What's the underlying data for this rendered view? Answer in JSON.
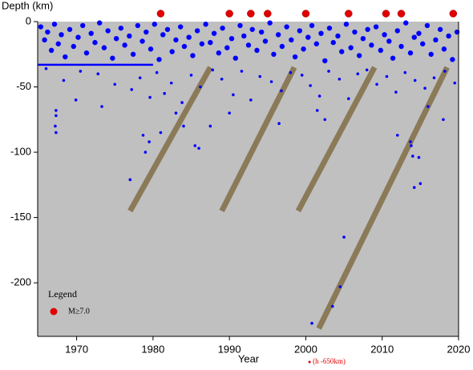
{
  "chart_data": {
    "type": "scatter",
    "x_label": "Year",
    "y_label": "Depth (km)",
    "xlim": [
      1964.9,
      2020
    ],
    "ylim": [
      -241,
      0
    ],
    "xticks": [
      1970,
      1980,
      1990,
      2000,
      2010,
      2020
    ],
    "yticks": [
      0,
      -50,
      -100,
      -150,
      -200
    ],
    "points": {
      "color": "#0000ff",
      "x": [
        1965.3,
        1965.8,
        1966.2,
        1966.7,
        1967.1,
        1967.6,
        1968.0,
        1968.5,
        1969.1,
        1969.6,
        1970.2,
        1970.8,
        1971.3,
        1971.9,
        1972.4,
        1973.0,
        1973.6,
        1974.1,
        1974.7,
        1975.2,
        1975.8,
        1976.3,
        1976.9,
        1977.4,
        1978.0,
        1978.6,
        1979.1,
        1979.7,
        1980.2,
        1980.8,
        1981.3,
        1981.9,
        1982.5,
        1983.0,
        1983.6,
        1984.1,
        1984.7,
        1985.2,
        1985.8,
        1986.4,
        1986.9,
        1987.5,
        1988.0,
        1988.6,
        1989.1,
        1989.7,
        1990.3,
        1990.8,
        1991.4,
        1991.9,
        1992.5,
        1993.0,
        1993.6,
        1994.2,
        1994.7,
        1995.3,
        1995.8,
        1996.4,
        1996.9,
        1997.5,
        1998.1,
        1998.6,
        1999.2,
        1999.7,
        2000.3,
        2000.8,
        2001.4,
        2002.0,
        2002.5,
        2003.1,
        2003.6,
        2004.2,
        2004.7,
        2005.3,
        2005.9,
        2006.4,
        2007.0,
        2007.5,
        2008.1,
        2008.6,
        2009.2,
        2009.8,
        2010.3,
        2010.9,
        2011.4,
        2012.0,
        2012.5,
        2013.1,
        2013.7,
        2014.2,
        2014.8,
        2015.3,
        2015.9,
        2016.4,
        2017.0,
        2017.6,
        2018.1,
        2018.7,
        2019.2,
        2019.8,
        1966,
        1968.3,
        1970.5,
        1972.8,
        1975,
        1977.2,
        1978.3,
        1979.6,
        1980.5,
        1981.5,
        1982.4,
        1983.8,
        1985,
        1986.2,
        1987.8,
        1989,
        1990.5,
        1991.6,
        1992.8,
        1994,
        1995.5,
        1996.8,
        1998,
        1999.5,
        2000.6,
        2001.8,
        2003,
        2004.4,
        2005.6,
        2006.8,
        2008,
        2009.3,
        2010.6,
        2011.8,
        2013,
        2014.3,
        2015.6,
        2016.8,
        2018.2,
        2019.5,
        1967.3,
        1967.3,
        1967.2,
        1967.3,
        1969.9,
        1973.3,
        1977,
        1978.7,
        1979,
        1979.5,
        1981,
        1983,
        1984,
        1985.5,
        1986,
        1987.5,
        1990,
        1996.5,
        2001.5,
        2002.5,
        2005,
        2004.5,
        2003.5,
        2000.8,
        2013.7,
        2013.8,
        2014,
        2014.8,
        2014.2,
        2015,
        2012,
        2016,
        2018
      ],
      "y": [
        -4,
        -14,
        -8,
        -22,
        -2,
        -17,
        -10,
        -27,
        -6,
        -19,
        -12,
        -3,
        -24,
        -9,
        -16,
        -1,
        -20,
        -7,
        -28,
        -13,
        -5,
        -18,
        -11,
        -25,
        -3,
        -15,
        -8,
        -21,
        -2,
        -29,
        -10,
        -6,
        -23,
        -14,
        -4,
        -19,
        -12,
        -26,
        -7,
        -17,
        -2,
        -16,
        -9,
        -24,
        -5,
        -20,
        -13,
        -28,
        -3,
        -11,
        -18,
        -6,
        -22,
        -8,
        -15,
        -1,
        -25,
        -10,
        -19,
        -4,
        -14,
        -27,
        -7,
        -21,
        -12,
        -3,
        -17,
        -9,
        -30,
        -5,
        -16,
        -11,
        -23,
        -2,
        -20,
        -8,
        -26,
        -13,
        -6,
        -18,
        -4,
        -22,
        -10,
        -15,
        -28,
        -7,
        -19,
        -1,
        -24,
        -12,
        -9,
        -17,
        -3,
        -25,
        -14,
        -6,
        -21,
        -11,
        -29,
        -8,
        -36,
        -45,
        -38,
        -40,
        -48,
        -52,
        -43,
        -58,
        -39,
        -55,
        -47,
        -62,
        -41,
        -50,
        -37,
        -44,
        -56,
        -38,
        -60,
        -42,
        -46,
        -53,
        -39,
        -41,
        -49,
        -57,
        -38,
        -44,
        -59,
        -40,
        -37,
        -48,
        -42,
        -54,
        -39,
        -45,
        -51,
        -43,
        -38,
        -47,
        -68,
        -72,
        -80,
        -85,
        -60,
        -65,
        -121,
        -87,
        -100,
        -92,
        -85,
        -70,
        -80,
        -95,
        -97,
        -80,
        -70,
        -78,
        -68,
        -75,
        -165,
        -203,
        -218,
        -231,
        -92,
        -95,
        -103,
        -104,
        -127,
        -124,
        -87,
        -65,
        -75
      ]
    },
    "fixed_depth_line": {
      "color": "#0000ff",
      "x": [
        1964.9,
        1980
      ],
      "y": [
        -33,
        -33
      ]
    },
    "major": {
      "name": "M≥7.0",
      "color": "#e00000",
      "x": [
        1981,
        1990,
        1992.8,
        1995,
        2000,
        2005.6,
        2010.5,
        2012.5,
        2019.3
      ]
    },
    "band_color": "#8b7a58",
    "bands": [
      {
        "x": [
          1977,
          1987.5
        ],
        "y": [
          -145,
          -35
        ]
      },
      {
        "x": [
          1989,
          1998.5
        ],
        "y": [
          -145,
          -35
        ]
      },
      {
        "x": [
          1999,
          2009
        ],
        "y": [
          -145,
          -35
        ]
      },
      {
        "x": [
          2001.7,
          2018.5
        ],
        "y": [
          -235,
          -35
        ]
      }
    ],
    "annotation": {
      "text": "(h -650km)",
      "x": 2000.7
    },
    "legend": {
      "title": "Legend",
      "position": "lower left"
    }
  }
}
